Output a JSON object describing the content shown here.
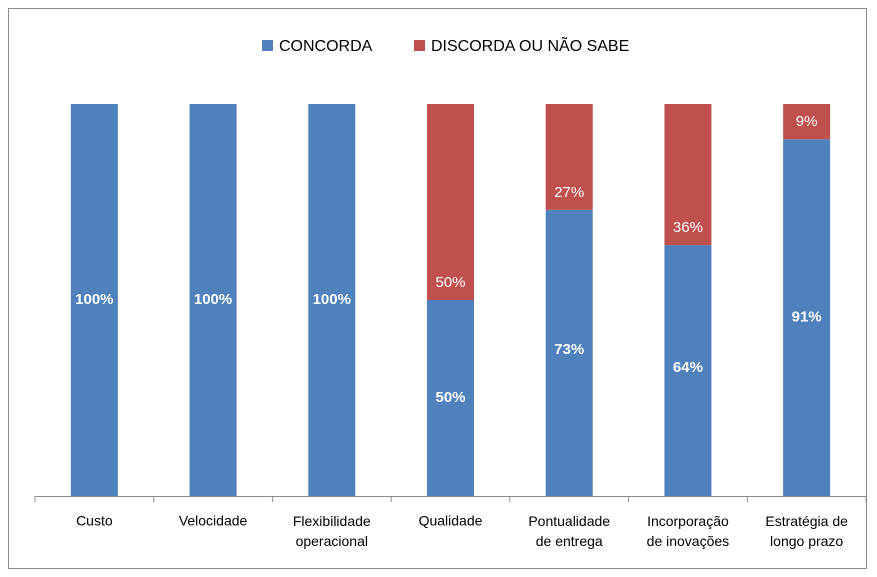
{
  "chart_data": {
    "type": "stacked_bar",
    "categories": [
      "Custo",
      "Velocidade",
      "Flexibilidade\noperacional",
      "Qualidade",
      "Pontualidade\nde entrega",
      "Incorporação\nde inovações",
      "Estratégia de\nlongo prazo"
    ],
    "series": [
      {
        "name": "CONCORDA",
        "color": "#4f81bd",
        "values": [
          100,
          100,
          100,
          50,
          73,
          64,
          91
        ],
        "value_labels": [
          "100%",
          "100%",
          "100%",
          "50%",
          "73%",
          "64%",
          "91%"
        ]
      },
      {
        "name": "DISCORDA OU NÃO SABE",
        "color": "#c0504d",
        "values": [
          0,
          0,
          0,
          50,
          27,
          36,
          9
        ],
        "value_labels": [
          null,
          null,
          null,
          "50%",
          "27%",
          "36%",
          "9%"
        ]
      }
    ],
    "ylim": [
      0,
      100
    ],
    "legend": "top"
  }
}
